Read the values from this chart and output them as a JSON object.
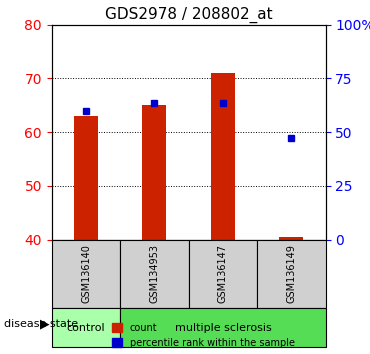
{
  "title": "GDS2978 / 208802_at",
  "samples": [
    "GSM136140",
    "GSM134953",
    "GSM136147",
    "GSM136149"
  ],
  "count_values": [
    63,
    65,
    71,
    40.5
  ],
  "percentile_values": [
    64,
    65.5,
    65.5,
    59
  ],
  "left_ylim": [
    40,
    80
  ],
  "left_yticks": [
    40,
    50,
    60,
    70,
    80
  ],
  "right_ylim": [
    40,
    80
  ],
  "right_yticks": [
    40,
    50,
    60,
    70,
    80
  ],
  "right_yticklabels": [
    "0",
    "25",
    "50",
    "75",
    "100%"
  ],
  "bar_color": "#cc2200",
  "dot_color": "#0000cc",
  "grid_color": "#000000",
  "sample_bg": "#d0d0d0",
  "control_bg": "#b3ffb3",
  "ms_bg": "#66dd66",
  "label_disease": "disease state",
  "label_control": "control",
  "label_ms": "multiple sclerosis",
  "legend_count": "count",
  "legend_pct": "percentile rank within the sample",
  "control_samples": [
    "GSM136140"
  ],
  "ms_samples": [
    "GSM134953",
    "GSM136147",
    "GSM136149"
  ],
  "bar_width": 0.35,
  "bar_bottom": 40
}
